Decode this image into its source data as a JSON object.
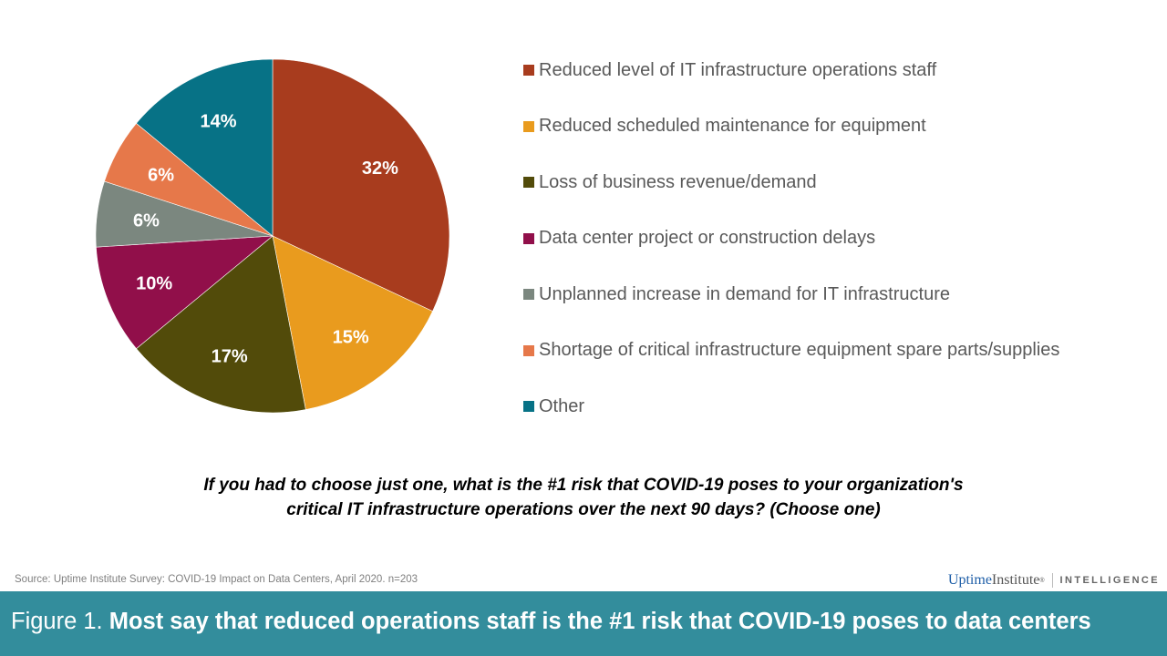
{
  "chart_data": {
    "type": "pie",
    "title": "If you had to choose just one, what is the #1 risk that COVID-19 poses to your organization's critical IT infrastructure operations over the next 90 days? (Choose one)",
    "start_angle": "12 o'clock, clockwise",
    "legend_position": "right",
    "slices": [
      {
        "label": "Reduced level of IT infrastructure operations staff",
        "value": 32,
        "data_label": "32%",
        "color": "#a83c1e"
      },
      {
        "label": "Reduced scheduled maintenance for equipment",
        "value": 15,
        "data_label": "15%",
        "color": "#e99b1e"
      },
      {
        "label": "Loss of business revenue/demand",
        "value": 17,
        "data_label": "17%",
        "color": "#524b0a"
      },
      {
        "label": "Data center project or construction delays",
        "value": 10,
        "data_label": "10%",
        "color": "#910f4a"
      },
      {
        "label": "Unplanned increase in demand for IT infrastructure",
        "value": 6,
        "data_label": "6%",
        "color": "#7b877f"
      },
      {
        "label": "Shortage of critical infrastructure equipment spare parts/supplies",
        "value": 6,
        "data_label": "6%",
        "color": "#e6784a"
      },
      {
        "label": "Other",
        "value": 14,
        "data_label": "14%",
        "color": "#077286"
      }
    ]
  },
  "question_line1": "If you had to choose just one, what is the #1 risk that COVID-19  poses to your organization's",
  "question_line2": "critical IT infrastructure operations over the next 90 days? (Choose one)",
  "source": "Source: Uptime Institute Survey: COVID-19 Impact on Data Centers, April 2020. n=203",
  "logo": {
    "uptime": "Uptime",
    "institute": "Institute",
    "reg": "®",
    "intelligence": "INTELLIGENCE"
  },
  "banner": {
    "prefix": "Figure 1. ",
    "title": "Most say that reduced operations staff is the #1 risk that COVID-19 poses to data centers",
    "color": "#338d9c"
  }
}
